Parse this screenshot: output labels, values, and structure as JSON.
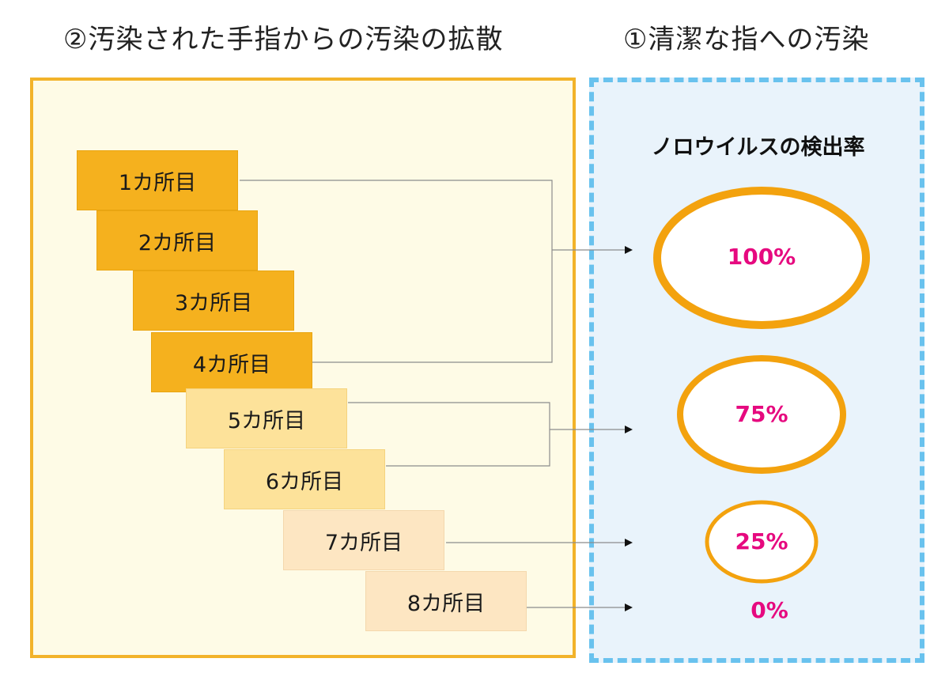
{
  "titles": {
    "left": "②汚染された手指からの汚染の拡散",
    "right": "①清潔な指への汚染"
  },
  "right_heading": "ノロウイルスの検出率",
  "cards": [
    {
      "label": "1カ所目",
      "tone": "dark"
    },
    {
      "label": "2カ所目",
      "tone": "dark"
    },
    {
      "label": "3カ所目",
      "tone": "dark"
    },
    {
      "label": "4カ所目",
      "tone": "dark"
    },
    {
      "label": "5カ所目",
      "tone": "mid"
    },
    {
      "label": "6カ所目",
      "tone": "mid"
    },
    {
      "label": "7カ所目",
      "tone": "light"
    },
    {
      "label": "8カ所目",
      "tone": "light"
    }
  ],
  "results": [
    {
      "label": "100%",
      "value": 100,
      "from_cards": [
        "1カ所目",
        "2カ所目",
        "3カ所目",
        "4カ所目"
      ]
    },
    {
      "label": "75%",
      "value": 75,
      "from_cards": [
        "5カ所目",
        "6カ所目"
      ]
    },
    {
      "label": "25%",
      "value": 25,
      "from_cards": [
        "7カ所目"
      ]
    },
    {
      "label": "0%",
      "value": 0,
      "from_cards": [
        "8カ所目"
      ]
    }
  ],
  "colors": {
    "frame_left": "#f2b32a",
    "frame_right": "#69c2ee",
    "panel_left_bg": "#fefbe6",
    "panel_right_bg": "#e9f3fb",
    "card_dark": "#f5b11e",
    "card_mid": "#fde29a",
    "card_light": "#fde6c2",
    "ellipse_stroke": "#f3a20e",
    "percent_text": "#e6097f"
  }
}
